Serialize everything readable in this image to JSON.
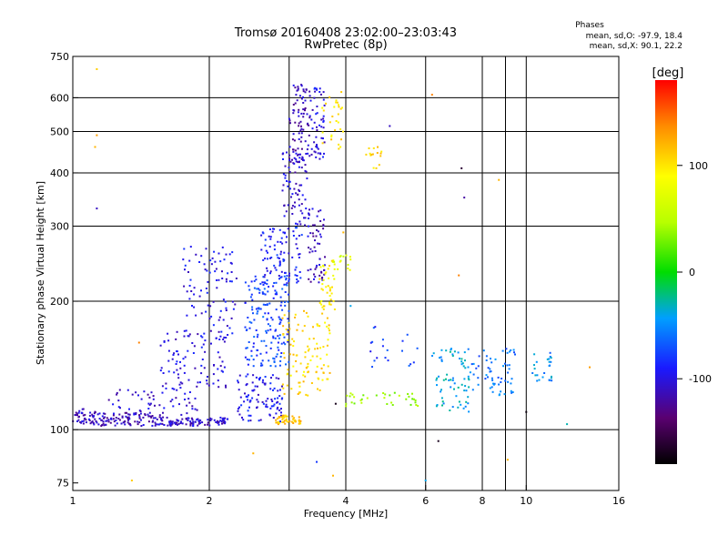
{
  "chart_data": {
    "type": "scatter",
    "title": "Tromsø 20160408 23:02:00–23:03:43",
    "subtitle": "RwPretec (8p)",
    "xlabel": "Frequency [MHz]",
    "ylabel": "Stationary phase Virtual Height [km]",
    "x_scale": "log",
    "y_scale": "log",
    "xlim": [
      1,
      16
    ],
    "ylim": [
      72,
      750
    ],
    "x_ticks": [
      1,
      2,
      4,
      6,
      8,
      10,
      16
    ],
    "y_ticks": [
      75,
      100,
      200,
      300,
      400,
      500,
      600,
      750
    ],
    "x_grid": [
      1,
      2,
      3,
      4,
      6,
      8,
      9,
      10,
      16
    ],
    "y_grid": [
      100,
      200,
      300,
      400,
      500,
      600
    ],
    "grid": true,
    "stats": {
      "heading": "Phases",
      "line_o": "mean, sd,O: -97.9, 18.4",
      "line_x": "mean, sd,X:  90.1, 22.2"
    },
    "colorbar": {
      "label": "[deg]",
      "range": [
        -180,
        180
      ],
      "ticks": [
        -100,
        0,
        100
      ]
    },
    "note": "phase in degrees per echo cluster",
    "clusters": [
      {
        "x0": 1.0,
        "x1": 1.12,
        "y0": 103,
        "y1": 112,
        "phase": -110,
        "n": 40
      },
      {
        "x0": 1.1,
        "x1": 1.5,
        "y0": 102,
        "y1": 110,
        "phase": -112,
        "n": 90
      },
      {
        "x0": 1.5,
        "x1": 2.2,
        "y0": 102,
        "y1": 107,
        "phase": -108,
        "n": 110
      },
      {
        "x0": 1.2,
        "x1": 1.9,
        "y0": 108,
        "y1": 125,
        "phase": -105,
        "n": 60
      },
      {
        "x0": 1.55,
        "x1": 2.2,
        "y0": 125,
        "y1": 170,
        "phase": -100,
        "n": 90
      },
      {
        "x0": 1.75,
        "x1": 2.3,
        "y0": 165,
        "y1": 270,
        "phase": -98,
        "n": 90
      },
      {
        "x0": 2.3,
        "x1": 2.9,
        "y0": 104,
        "y1": 135,
        "phase": -95,
        "n": 100
      },
      {
        "x0": 2.4,
        "x1": 3.0,
        "y0": 140,
        "y1": 230,
        "phase": -75,
        "n": 170
      },
      {
        "x0": 2.6,
        "x1": 3.2,
        "y0": 220,
        "y1": 300,
        "phase": -90,
        "n": 90
      },
      {
        "x0": 2.9,
        "x1": 3.3,
        "y0": 300,
        "y1": 450,
        "phase": -105,
        "n": 70
      },
      {
        "x0": 3.0,
        "x1": 3.35,
        "y0": 420,
        "y1": 650,
        "phase": -112,
        "n": 90
      },
      {
        "x0": 3.35,
        "x1": 3.6,
        "y0": 430,
        "y1": 640,
        "phase": -100,
        "n": 50
      },
      {
        "x0": 3.3,
        "x1": 3.6,
        "y0": 220,
        "y1": 330,
        "phase": -110,
        "n": 60
      },
      {
        "x0": 3.55,
        "x1": 3.95,
        "y0": 450,
        "y1": 620,
        "phase": 100,
        "n": 30
      },
      {
        "x0": 2.8,
        "x1": 3.2,
        "y0": 103,
        "y1": 108,
        "phase": 115,
        "n": 45
      },
      {
        "x0": 2.9,
        "x1": 3.7,
        "y0": 120,
        "y1": 190,
        "phase": 105,
        "n": 110
      },
      {
        "x0": 3.5,
        "x1": 3.8,
        "y0": 190,
        "y1": 250,
        "phase": 95,
        "n": 40
      },
      {
        "x0": 3.75,
        "x1": 4.1,
        "y0": 235,
        "y1": 260,
        "phase": 70,
        "n": 15
      },
      {
        "x0": 4.4,
        "x1": 4.8,
        "y0": 410,
        "y1": 460,
        "phase": 110,
        "n": 15
      },
      {
        "x0": 4.0,
        "x1": 5.8,
        "y0": 113,
        "y1": 122,
        "phase": 40,
        "n": 35
      },
      {
        "x0": 4.5,
        "x1": 5.8,
        "y0": 140,
        "y1": 175,
        "phase": -80,
        "n": 20
      },
      {
        "x0": 6.2,
        "x1": 7.5,
        "y0": 110,
        "y1": 155,
        "phase": -40,
        "n": 70
      },
      {
        "x0": 7.5,
        "x1": 9.5,
        "y0": 120,
        "y1": 155,
        "phase": -60,
        "n": 60
      },
      {
        "x0": 10.3,
        "x1": 11.4,
        "y0": 130,
        "y1": 152,
        "phase": -50,
        "n": 25
      }
    ],
    "points": [
      {
        "x": 1.13,
        "y": 700,
        "phase": 110
      },
      {
        "x": 1.13,
        "y": 490,
        "phase": 130
      },
      {
        "x": 1.12,
        "y": 460,
        "phase": 120
      },
      {
        "x": 1.13,
        "y": 330,
        "phase": -110
      },
      {
        "x": 1.4,
        "y": 160,
        "phase": 140
      },
      {
        "x": 1.35,
        "y": 76,
        "phase": 110
      },
      {
        "x": 6.2,
        "y": 610,
        "phase": 140
      },
      {
        "x": 7.2,
        "y": 410,
        "phase": -160
      },
      {
        "x": 7.3,
        "y": 350,
        "phase": -120
      },
      {
        "x": 7.1,
        "y": 230,
        "phase": 140
      },
      {
        "x": 10.0,
        "y": 110,
        "phase": -175
      },
      {
        "x": 12.3,
        "y": 103,
        "phase": -30
      },
      {
        "x": 6.4,
        "y": 94,
        "phase": -170
      },
      {
        "x": 8.7,
        "y": 385,
        "phase": 120
      },
      {
        "x": 9.1,
        "y": 85,
        "phase": 120
      },
      {
        "x": 3.75,
        "y": 78,
        "phase": 120
      },
      {
        "x": 6.0,
        "y": 76,
        "phase": -40
      },
      {
        "x": 2.5,
        "y": 88,
        "phase": 120
      },
      {
        "x": 3.45,
        "y": 84,
        "phase": -80
      },
      {
        "x": 3.8,
        "y": 115,
        "phase": -170
      },
      {
        "x": 5.0,
        "y": 515,
        "phase": -110
      },
      {
        "x": 3.95,
        "y": 290,
        "phase": 120
      },
      {
        "x": 13.8,
        "y": 140,
        "phase": 130
      },
      {
        "x": 4.1,
        "y": 195,
        "phase": -40
      }
    ]
  }
}
